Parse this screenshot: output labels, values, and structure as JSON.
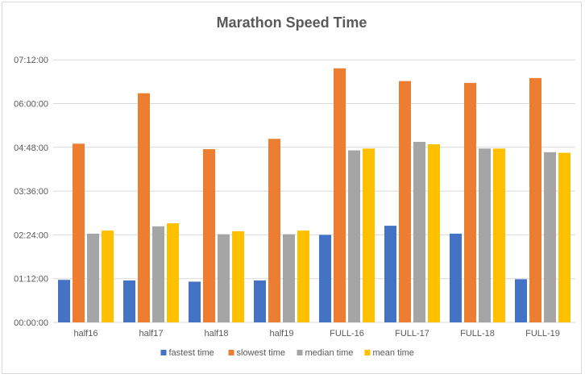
{
  "chart_data": {
    "type": "bar",
    "title": "Marathon Speed Time",
    "categories": [
      "half16",
      "half17",
      "half18",
      "half19",
      "FULL-16",
      "FULL-17",
      "FULL-18",
      "FULL-19"
    ],
    "y_unit": "minutes",
    "ylim": [
      0,
      480
    ],
    "y_ticks": [
      {
        "value": 0,
        "label": "00:00:00"
      },
      {
        "value": 72,
        "label": "01:12:00"
      },
      {
        "value": 144,
        "label": "02:24:00"
      },
      {
        "value": 216,
        "label": "03:36:00"
      },
      {
        "value": 288,
        "label": "04:48:00"
      },
      {
        "value": 360,
        "label": "06:00:00"
      },
      {
        "value": 432,
        "label": "07:12:00"
      }
    ],
    "series": [
      {
        "name": "fastest time",
        "color": "#4472c4",
        "values": [
          70,
          69,
          67,
          69,
          144,
          159,
          146,
          71
        ]
      },
      {
        "name": "slowest time",
        "color": "#ed7d31",
        "values": [
          294,
          377,
          285,
          302,
          418,
          397,
          394,
          402
        ]
      },
      {
        "name": "median time",
        "color": "#a5a5a5",
        "values": [
          146,
          158,
          145,
          145,
          283,
          297,
          286,
          280
        ]
      },
      {
        "name": "mean time",
        "color": "#ffc000",
        "values": [
          151,
          163,
          150,
          151,
          286,
          293,
          286,
          279
        ]
      }
    ],
    "grid": true,
    "legend_position": "bottom"
  }
}
